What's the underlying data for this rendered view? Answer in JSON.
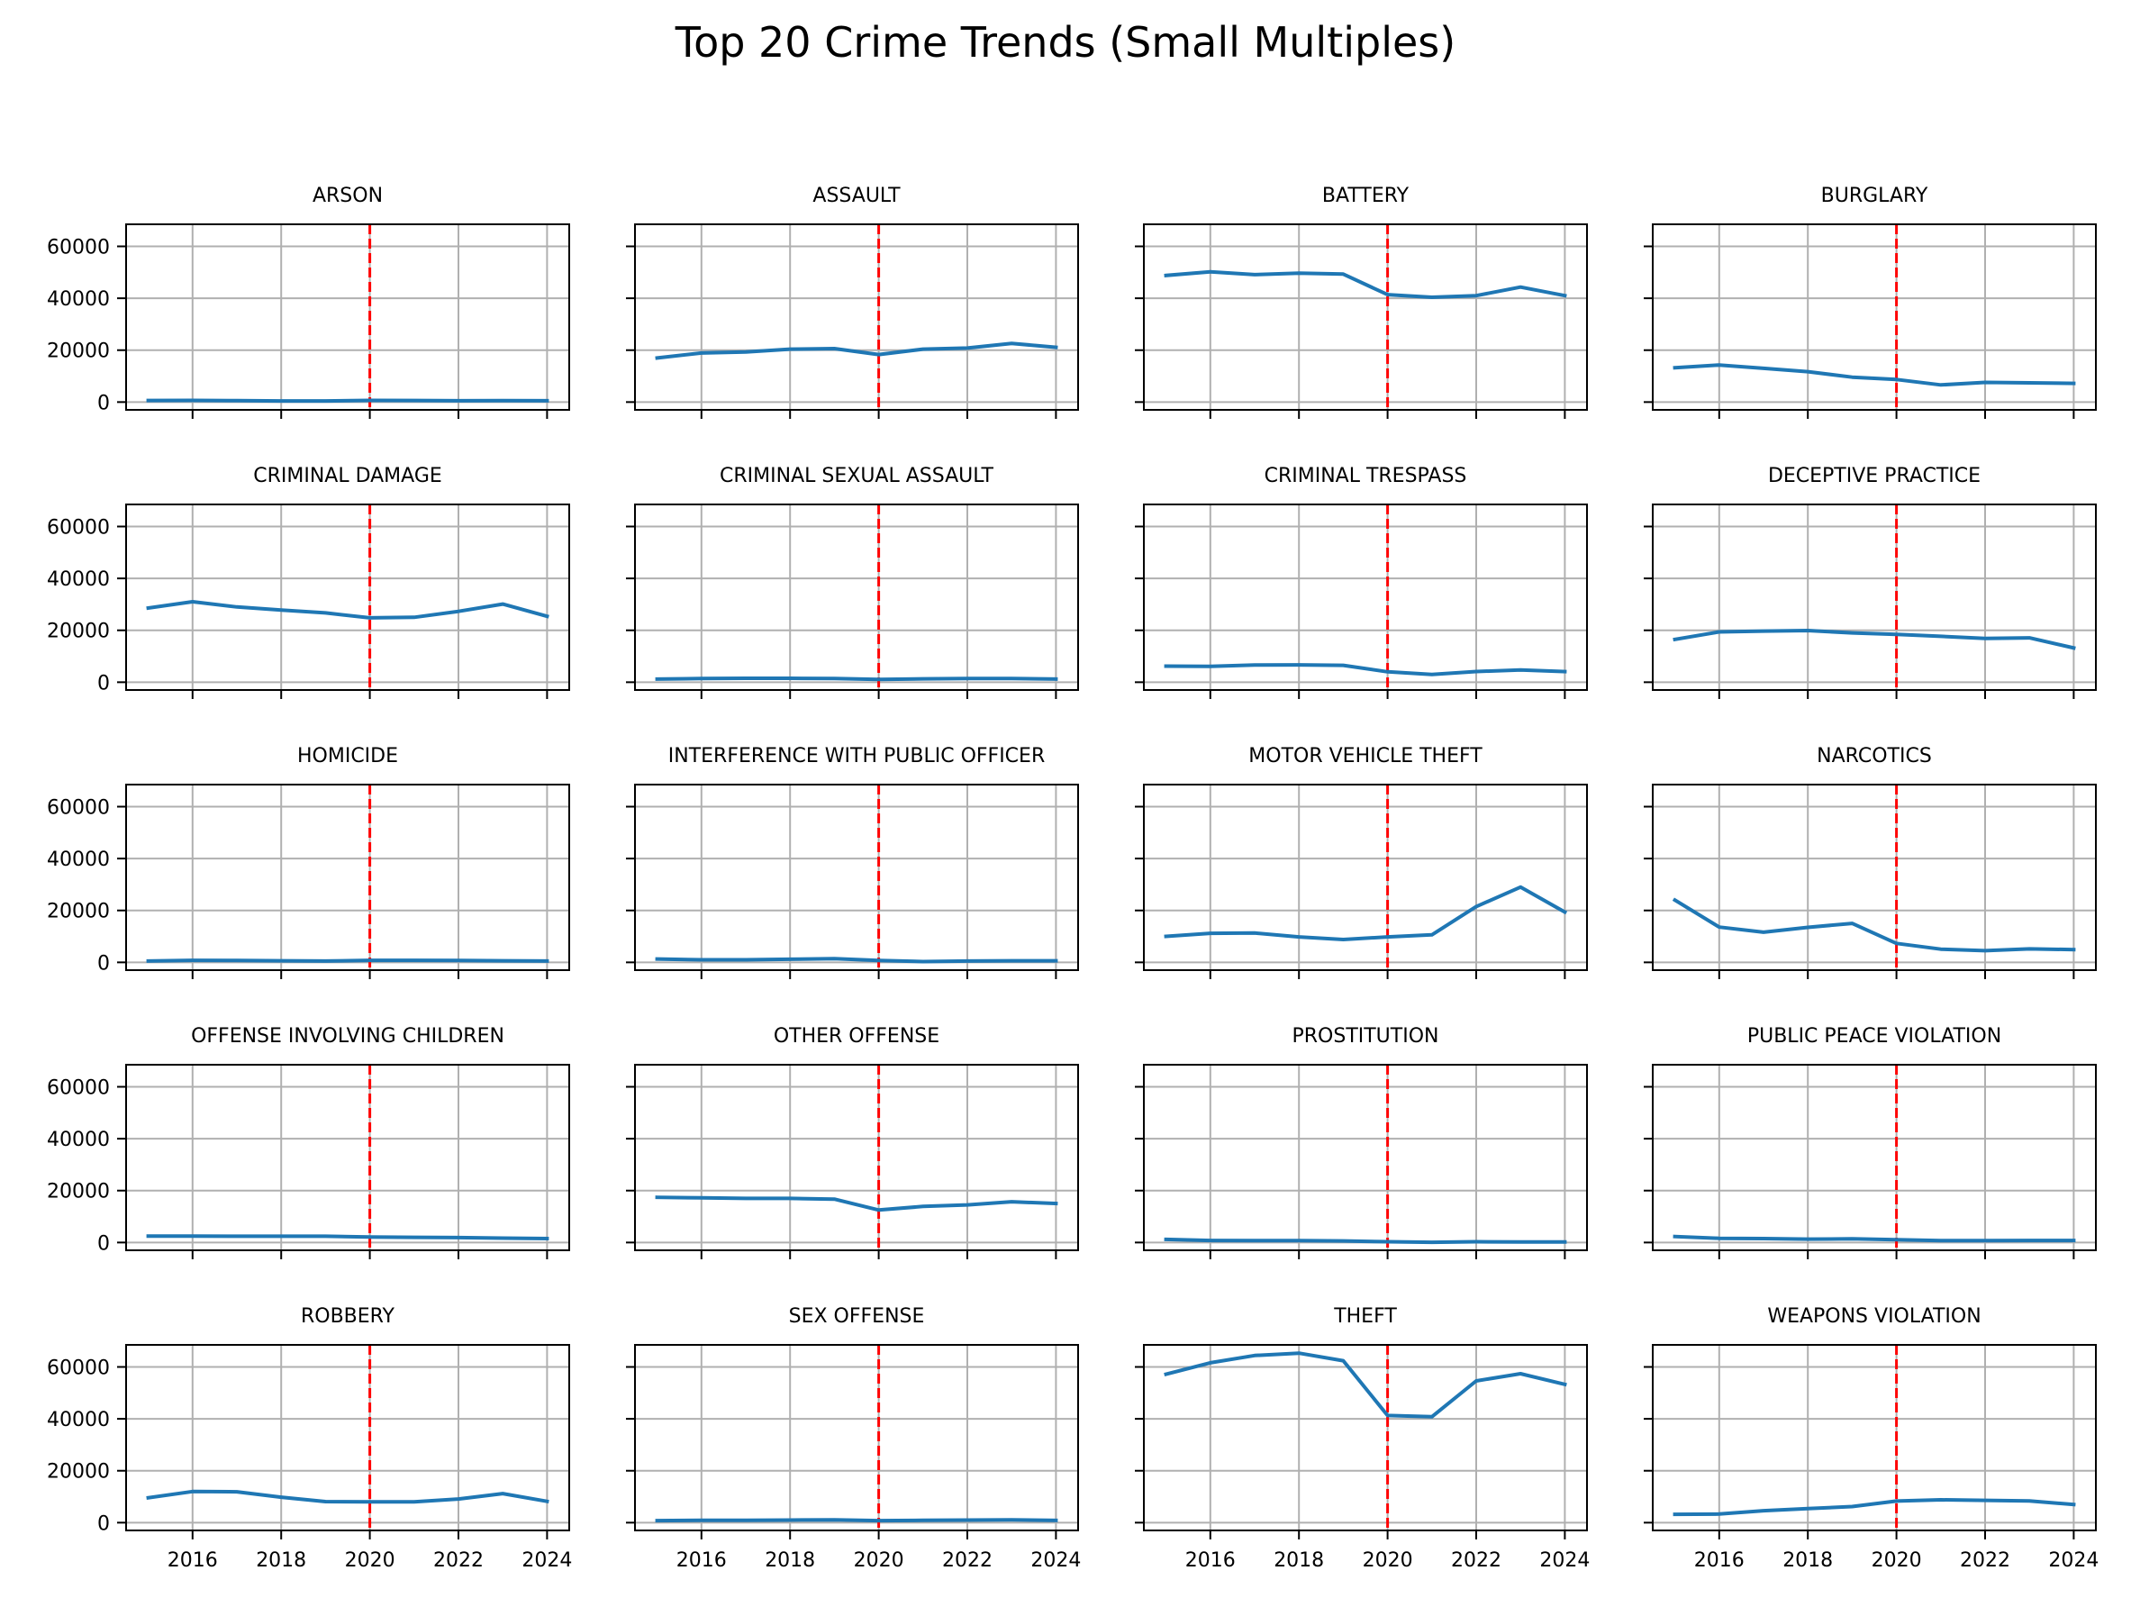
{
  "chart_data": {
    "type": "line",
    "title": "Top 20 Crime Trends (Small Multiples)",
    "layout_description": "5 rows x 4 columns of small-multiple line charts, shared x and y axes",
    "x": [
      2015,
      2016,
      2017,
      2018,
      2019,
      2020,
      2021,
      2022,
      2023,
      2024
    ],
    "xlim": [
      2014.5,
      2024.5
    ],
    "ylim": [
      -3000,
      68500
    ],
    "xticks": [
      2016,
      2018,
      2020,
      2022,
      2024
    ],
    "yticks": [
      0,
      20000,
      40000,
      60000
    ],
    "grid": true,
    "reference_line": {
      "x": 2020,
      "style": "dashed",
      "color": "#ff0000"
    },
    "line_color": "#1f77b4",
    "grid_color": "#b0b0b0",
    "series": [
      {
        "name": "ARSON",
        "values": [
          600,
          650,
          550,
          450,
          450,
          650,
          600,
          500,
          550,
          500
        ]
      },
      {
        "name": "ASSAULT",
        "values": [
          17000,
          18900,
          19300,
          20400,
          20600,
          18300,
          20400,
          20800,
          22600,
          21100
        ]
      },
      {
        "name": "BATTERY",
        "values": [
          48800,
          50200,
          49100,
          49700,
          49300,
          41400,
          40400,
          41000,
          44300,
          41000
        ]
      },
      {
        "name": "BURGLARY",
        "values": [
          13200,
          14300,
          13000,
          11700,
          9600,
          8700,
          6600,
          7600,
          7400,
          7200
        ]
      },
      {
        "name": "CRIMINAL DAMAGE",
        "values": [
          28600,
          31000,
          29000,
          27800,
          26700,
          24800,
          25000,
          27300,
          30100,
          25400
        ]
      },
      {
        "name": "CRIMINAL SEXUAL ASSAULT",
        "values": [
          1200,
          1400,
          1500,
          1500,
          1400,
          1100,
          1300,
          1400,
          1400,
          1200
        ]
      },
      {
        "name": "CRIMINAL TRESPASS",
        "values": [
          6200,
          6100,
          6600,
          6700,
          6500,
          4000,
          3000,
          4100,
          4700,
          4100
        ]
      },
      {
        "name": "DECEPTIVE PRACTICE",
        "values": [
          16500,
          19400,
          19700,
          19900,
          19000,
          18400,
          17700,
          16900,
          17100,
          13200
        ]
      },
      {
        "name": "HOMICIDE",
        "values": [
          500,
          800,
          700,
          600,
          500,
          800,
          800,
          700,
          600,
          500
        ]
      },
      {
        "name": "INTERFERENCE WITH PUBLIC OFFICER",
        "values": [
          1300,
          1000,
          1000,
          1200,
          1400,
          700,
          300,
          500,
          600,
          600
        ]
      },
      {
        "name": "MOTOR VEHICLE THEFT",
        "values": [
          10000,
          11200,
          11300,
          9800,
          8800,
          9800,
          10600,
          21500,
          29000,
          19400
        ]
      },
      {
        "name": "NARCOTICS",
        "values": [
          24000,
          13600,
          11600,
          13500,
          15000,
          7300,
          5100,
          4500,
          5200,
          4900
        ]
      },
      {
        "name": "OFFENSE INVOLVING CHILDREN",
        "values": [
          2500,
          2500,
          2400,
          2400,
          2400,
          2100,
          2000,
          1900,
          1700,
          1500
        ]
      },
      {
        "name": "OTHER OFFENSE",
        "values": [
          17400,
          17200,
          17000,
          17000,
          16700,
          12500,
          13900,
          14500,
          15700,
          15000
        ]
      },
      {
        "name": "PROSTITUTION",
        "values": [
          1200,
          800,
          700,
          700,
          600,
          300,
          100,
          300,
          200,
          200
        ]
      },
      {
        "name": "PUBLIC PEACE VIOLATION",
        "values": [
          2300,
          1600,
          1500,
          1300,
          1400,
          1100,
          700,
          700,
          800,
          800
        ]
      },
      {
        "name": "ROBBERY",
        "values": [
          9600,
          12000,
          11900,
          9800,
          8100,
          8000,
          8000,
          9100,
          11200,
          8200
        ]
      },
      {
        "name": "SEX OFFENSE",
        "values": [
          800,
          900,
          900,
          1000,
          1100,
          800,
          900,
          1000,
          1100,
          900
        ]
      },
      {
        "name": "THEFT",
        "values": [
          57200,
          61600,
          64400,
          65300,
          62400,
          41300,
          40800,
          54600,
          57400,
          53300
        ]
      },
      {
        "name": "WEAPONS VIOLATION",
        "values": [
          3200,
          3300,
          4600,
          5400,
          6200,
          8300,
          8800,
          8600,
          8400,
          7000
        ]
      }
    ]
  }
}
